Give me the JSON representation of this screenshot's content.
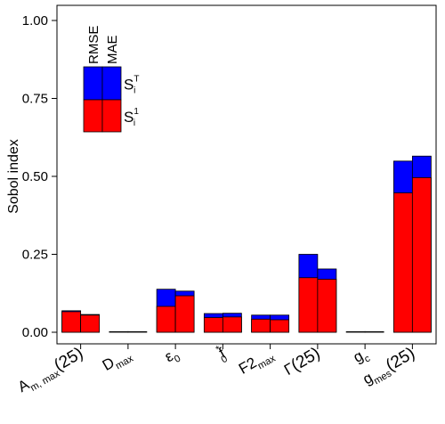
{
  "chart_data": {
    "type": "bar",
    "ylabel": "Sobol index",
    "ylim": [
      0,
      1.05
    ],
    "yticks": [
      "0.00",
      "0.25",
      "0.50",
      "0.75",
      "1.00"
    ],
    "ytick_values": [
      0,
      0.25,
      0.5,
      0.75,
      1.0
    ],
    "categories": [
      {
        "main": "A",
        "sub": "m, max",
        "suffix": "(25)"
      },
      {
        "main": "D",
        "sub": "max",
        "suffix": ""
      },
      {
        "main": "ε",
        "sub": "0",
        "suffix": ""
      },
      {
        "main": "f",
        "sub": "0",
        "sup": "*",
        "suffix": ""
      },
      {
        "main": "F2",
        "sub": "max",
        "suffix": ""
      },
      {
        "main": "Γ",
        "sub": "",
        "suffix": "(25)"
      },
      {
        "main": "g",
        "sub": "c",
        "suffix": ""
      },
      {
        "main": "g",
        "sub": "mes",
        "suffix": "(25)"
      }
    ],
    "metrics": [
      "RMSE",
      "MAE"
    ],
    "series": [
      {
        "name": "S_i^1",
        "color": "#ff0000",
        "values": {
          "RMSE": [
            0.066,
            0.0,
            0.083,
            0.047,
            0.042,
            0.175,
            0.0,
            0.447
          ],
          "MAE": [
            0.055,
            0.0,
            0.117,
            0.049,
            0.04,
            0.17,
            0.0,
            0.496
          ]
        }
      },
      {
        "name": "S_i^T",
        "color": "#0000ff",
        "values": {
          "RMSE": [
            0.069,
            0.002,
            0.138,
            0.06,
            0.055,
            0.25,
            0.002,
            0.549
          ],
          "MAE": [
            0.057,
            0.002,
            0.132,
            0.061,
            0.055,
            0.203,
            0.002,
            0.565
          ]
        }
      }
    ],
    "legend": {
      "placement": "top-left",
      "columns": [
        "RMSE",
        "MAE"
      ],
      "entries": [
        {
          "symbol": "S",
          "sub": "i",
          "sup": "T",
          "color": "#0000ff"
        },
        {
          "symbol": "S",
          "sub": "i",
          "sup": "1",
          "color": "#ff0000"
        }
      ]
    },
    "grid": false
  }
}
